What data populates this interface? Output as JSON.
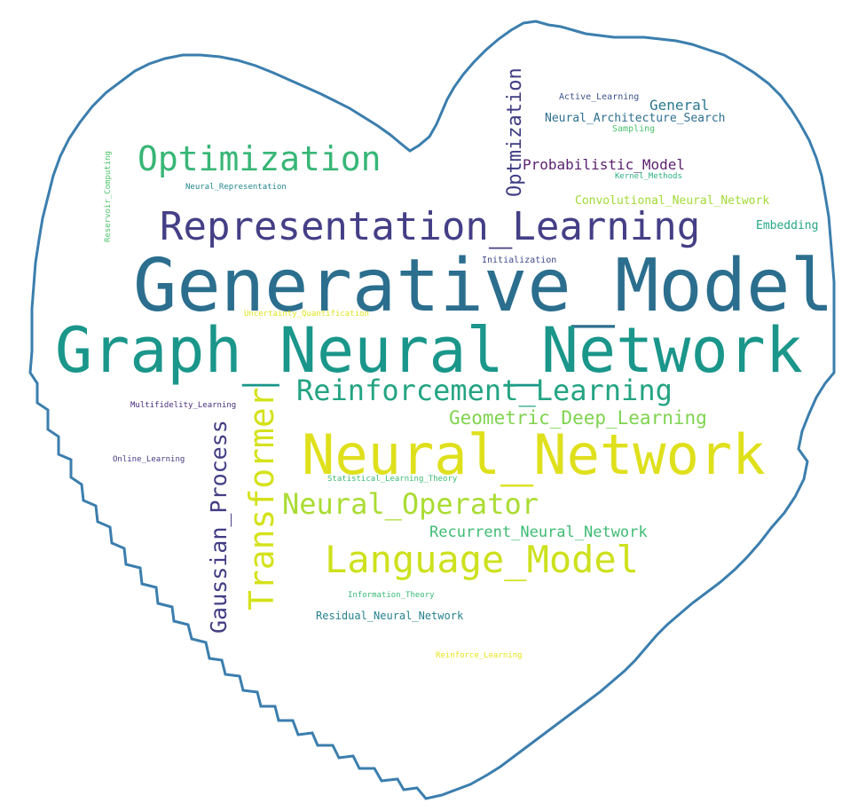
{
  "wordcloud": {
    "shape": "heart",
    "outline_color": "#3b7eae",
    "background": "#ffffff",
    "words": [
      {
        "text": "Generative_Model",
        "color": "#2b6e8e"
      },
      {
        "text": "Graph_Neural_Network",
        "color": "#1a968a"
      },
      {
        "text": "Neural_Network",
        "color": "#dfe01c"
      },
      {
        "text": "Representation_Learning",
        "color": "#443f86"
      },
      {
        "text": "Optimization",
        "color": "#37b676"
      },
      {
        "text": "Reinforcement_Learning",
        "color": "#24a482"
      },
      {
        "text": "Language_Model",
        "color": "#cde11d"
      },
      {
        "text": "Transformer",
        "color": "#d4e21a"
      },
      {
        "text": "Gaussian_Process",
        "color": "#433d84"
      },
      {
        "text": "Neural_Operator",
        "color": "#aadc32"
      },
      {
        "text": "Geometric_Deep_Learning",
        "color": "#7fd34e"
      },
      {
        "text": "Recurrent_Neural_Network",
        "color": "#3fbc73"
      },
      {
        "text": "Optmization",
        "color": "#3f3c83"
      },
      {
        "text": "Probabilistic_Model",
        "color": "#5a1f6e"
      },
      {
        "text": "General",
        "color": "#2a788e"
      },
      {
        "text": "Neural_Architecture_Search",
        "color": "#2d6f8e"
      },
      {
        "text": "Active_Learning",
        "color": "#3b528b"
      },
      {
        "text": "Sampling",
        "color": "#4ac16d"
      },
      {
        "text": "Kernel_Methods",
        "color": "#2ab07f"
      },
      {
        "text": "Convolutional_Neural_Network",
        "color": "#a3da37"
      },
      {
        "text": "Embedding",
        "color": "#24a884"
      },
      {
        "text": "Initialization",
        "color": "#3e4989"
      },
      {
        "text": "Uncertainty_Quantification",
        "color": "#e1e31c"
      },
      {
        "text": "Neural_Representation",
        "color": "#23878d"
      },
      {
        "text": "Reservoir_Computing",
        "color": "#4fc46a"
      },
      {
        "text": "Multifidelity_Learning",
        "color": "#472d7b"
      },
      {
        "text": "Online_Learning",
        "color": "#443a83"
      },
      {
        "text": "Statistical_Learning_Theory",
        "color": "#3bbb75"
      },
      {
        "text": "Information_Theory",
        "color": "#38b977"
      },
      {
        "text": "Residual_Neural_Network",
        "color": "#26828e"
      },
      {
        "text": "Reinforce_Learning",
        "color": "#e6e419"
      }
    ]
  }
}
